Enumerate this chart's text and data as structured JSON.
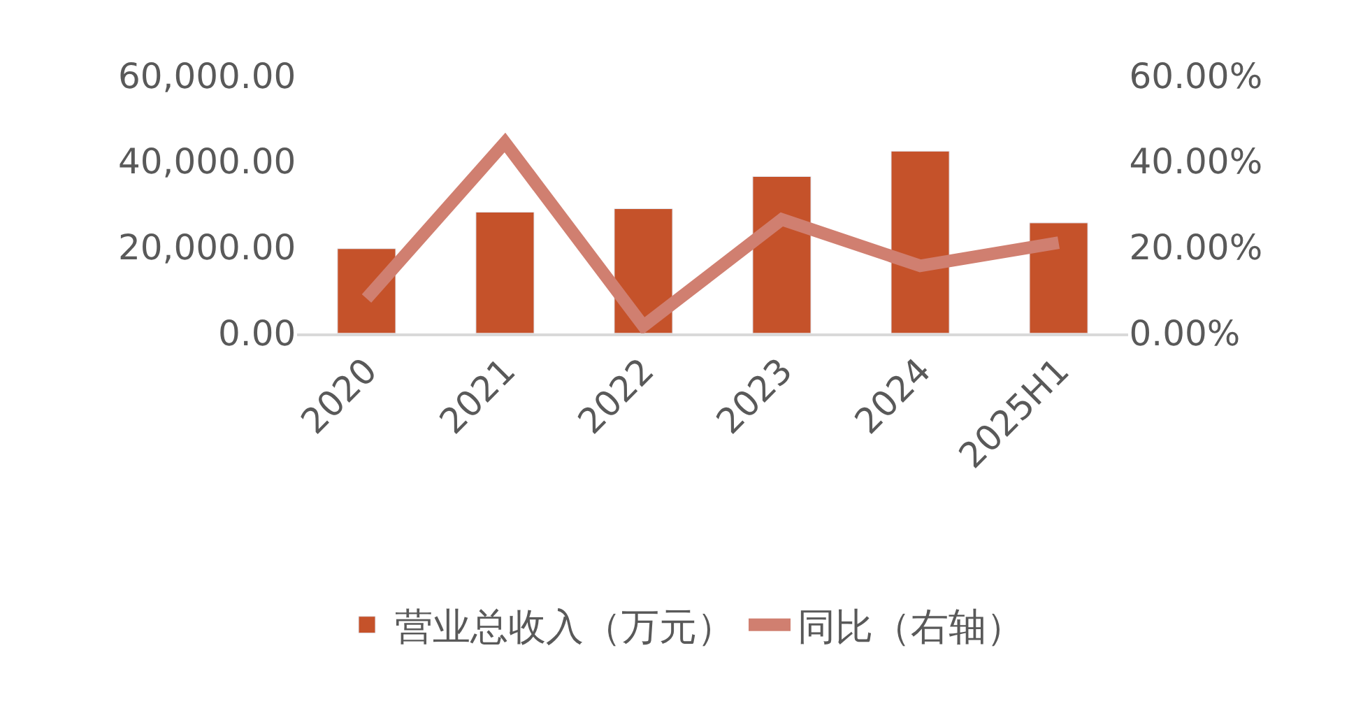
{
  "chart_data": {
    "type": "bar",
    "categories": [
      "2020",
      "2021",
      "2022",
      "2023",
      "2024",
      "2025H1"
    ],
    "series": [
      {
        "name": "营业总收入（万元）",
        "color": "#c5522a",
        "values": [
          19700,
          28200,
          29000,
          36500,
          42400,
          25700
        ]
      },
      {
        "name": "同比（右轴）",
        "type": "line",
        "axis": "y2",
        "color": "#d07f70",
        "values": [
          8.1,
          44.4,
          1.7,
          26.5,
          15.7,
          21.1
        ]
      }
    ],
    "ylim": [
      0,
      60000
    ],
    "yticks": [
      {
        "value": 0,
        "label": "0.00"
      },
      {
        "value": 20000,
        "label": "20,000.00"
      },
      {
        "value": 40000,
        "label": "40,000.00"
      },
      {
        "value": 60000,
        "label": "60,000.00"
      }
    ],
    "y2lim": [
      0,
      60
    ],
    "y2ticks": [
      {
        "value": 0,
        "label": "0.00%"
      },
      {
        "value": 20,
        "label": "20.00%"
      },
      {
        "value": 40,
        "label": "40.00%"
      },
      {
        "value": 60,
        "label": "60.00%"
      }
    ],
    "legend": "bottom",
    "marker": "none",
    "line_style": "solid"
  }
}
